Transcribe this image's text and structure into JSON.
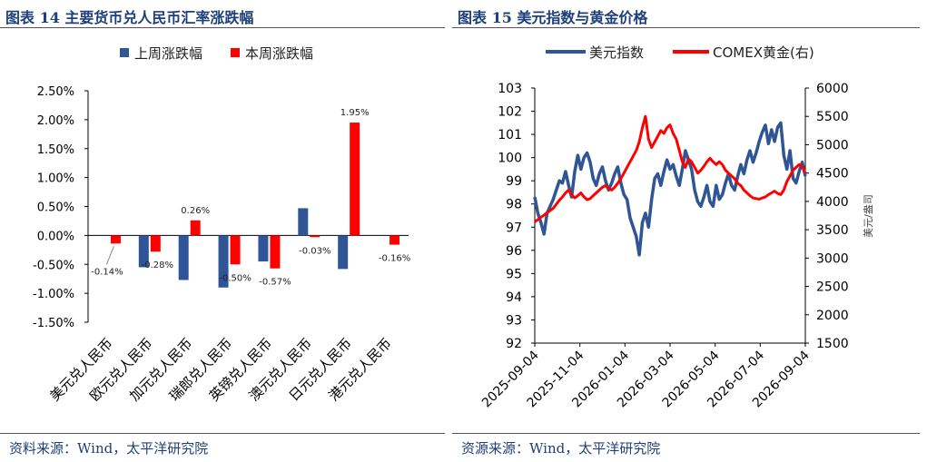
{
  "left": {
    "title": "图表 14 主要货币兑人民币汇率涨跌幅",
    "source": "资料来源：Wind，太平洋研究院"
  },
  "right": {
    "title": "图表 15 美元指数与黄金价格",
    "source": "资源来源：Wind，太平洋研究院"
  },
  "chart_data": [
    {
      "type": "bar",
      "title": "",
      "categories": [
        "美元兑人民币",
        "欧元兑人民币",
        "加元兑人民币",
        "瑞郎兑人民币",
        "英镑兑人民币",
        "澳元兑人民币",
        "日元兑人民币",
        "港元兑人民币"
      ],
      "series": [
        {
          "name": "上周涨跌幅",
          "color": "#2f5597",
          "values": [
            0.0,
            -0.55,
            -0.77,
            -0.9,
            -0.45,
            0.47,
            -0.58,
            0.0
          ]
        },
        {
          "name": "本周涨跌幅",
          "color": "#ff0000",
          "values": [
            -0.14,
            -0.28,
            0.26,
            -0.5,
            -0.57,
            -0.03,
            1.95,
            -0.16
          ]
        }
      ],
      "data_labels": [
        "-0.14%",
        "-0.28%",
        "0.26%",
        "-0.50%",
        "-0.57%",
        "-0.03%",
        "1.95%",
        "-0.16%"
      ],
      "y_ticks": [
        "2.50%",
        "2.00%",
        "1.50%",
        "1.00%",
        "0.50%",
        "0.00%",
        "-0.50%",
        "-1.00%",
        "-1.50%"
      ],
      "ylim": [
        -1.5,
        2.5
      ],
      "legend_position": "top-left",
      "grid": false
    },
    {
      "type": "line",
      "title": "",
      "x_ticks": [
        "2025-09-04",
        "2025-11-04",
        "2026-01-04",
        "2026-03-04",
        "2026-05-04",
        "2026-07-04",
        "2026-09-04"
      ],
      "y_left_ticks": [
        "103",
        "102",
        "101",
        "100",
        "99",
        "98",
        "97",
        "96",
        "95",
        "94",
        "93",
        "92"
      ],
      "y_right_ticks": [
        "6000",
        "5500",
        "5000",
        "4500",
        "4000",
        "3500",
        "3000",
        "2500",
        "2000",
        "1500"
      ],
      "ylim_left": [
        92,
        103
      ],
      "ylim_right": [
        1500,
        6000
      ],
      "y_right_label": "美元/盎司",
      "legend_position": "top",
      "grid": false,
      "series": [
        {
          "name": "美元指数",
          "axis": "left",
          "color": "#2f5597",
          "values": [
            98.3,
            97.6,
            97.2,
            96.7,
            97.6,
            97.9,
            98.2,
            98.6,
            99.0,
            98.9,
            99.4,
            98.8,
            98.3,
            99.4,
            100.1,
            99.5,
            100.0,
            100.2,
            99.8,
            99.1,
            98.8,
            99.3,
            99.6,
            99.0,
            98.6,
            98.9,
            99.3,
            99.6,
            98.9,
            98.4,
            98.2,
            97.4,
            97.0,
            96.6,
            95.8,
            97.2,
            97.6,
            97.0,
            98.2,
            99.1,
            99.3,
            98.8,
            99.4,
            99.9,
            99.5,
            99.7,
            99.2,
            98.8,
            99.5,
            100.3,
            99.9,
            99.5,
            98.6,
            98.1,
            97.9,
            98.3,
            98.8,
            98.1,
            97.9,
            98.8,
            98.2,
            98.4,
            98.9,
            99.3,
            98.8,
            98.6,
            99.2,
            99.7,
            99.3,
            99.9,
            100.3,
            99.8,
            100.2,
            100.7,
            101.1,
            101.4,
            100.6,
            101.2,
            100.7,
            101.3,
            101.5,
            100.1,
            99.5,
            100.3,
            99.1,
            98.9,
            99.4,
            99.8,
            99.2
          ]
        },
        {
          "name": "COMEX黄金(右)",
          "axis": "right",
          "color": "#ff0000",
          "values": [
            3640,
            3680,
            3720,
            3760,
            3800,
            3840,
            3880,
            3950,
            4020,
            4080,
            4150,
            4200,
            4120,
            4060,
            4100,
            4150,
            4080,
            4030,
            4050,
            4100,
            4150,
            4200,
            4250,
            4280,
            4230,
            4200,
            4250,
            4320,
            4400,
            4500,
            4600,
            4700,
            4800,
            4900,
            5050,
            5300,
            5500,
            5100,
            4950,
            5050,
            5150,
            5250,
            5200,
            5300,
            5350,
            5200,
            5100,
            4900,
            4700,
            4600,
            4750,
            4700,
            4600,
            4500,
            4550,
            4620,
            4700,
            4760,
            4700,
            4650,
            4700,
            4650,
            4550,
            4500,
            4450,
            4400,
            4320,
            4280,
            4200,
            4150,
            4100,
            4060,
            4050,
            4040,
            4060,
            4080,
            4120,
            4150,
            4180,
            4140,
            4120,
            4200,
            4350,
            4450,
            4550,
            4600,
            4650,
            4620,
            4500
          ]
        }
      ]
    }
  ]
}
